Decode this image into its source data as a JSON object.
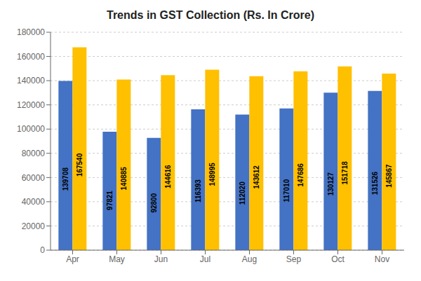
{
  "chart_data": {
    "type": "bar",
    "title": "Trends in GST Collection (Rs. In Crore)",
    "categories": [
      "Apr",
      "May",
      "Jun",
      "Jul",
      "Aug",
      "Sep",
      "Oct",
      "Nov"
    ],
    "series": [
      {
        "color": "#4472C4",
        "values": [
          139708,
          97821,
          92800,
          116393,
          112020,
          117010,
          130127,
          131526
        ]
      },
      {
        "color": "#FFC000",
        "values": [
          167540,
          140885,
          144616,
          148995,
          143612,
          147686,
          151718,
          145867
        ]
      }
    ],
    "ylim": [
      0,
      180000
    ],
    "yticks": [
      0,
      20000,
      40000,
      60000,
      80000,
      100000,
      120000,
      140000,
      160000,
      180000
    ],
    "grid": true,
    "data_labels": true
  }
}
